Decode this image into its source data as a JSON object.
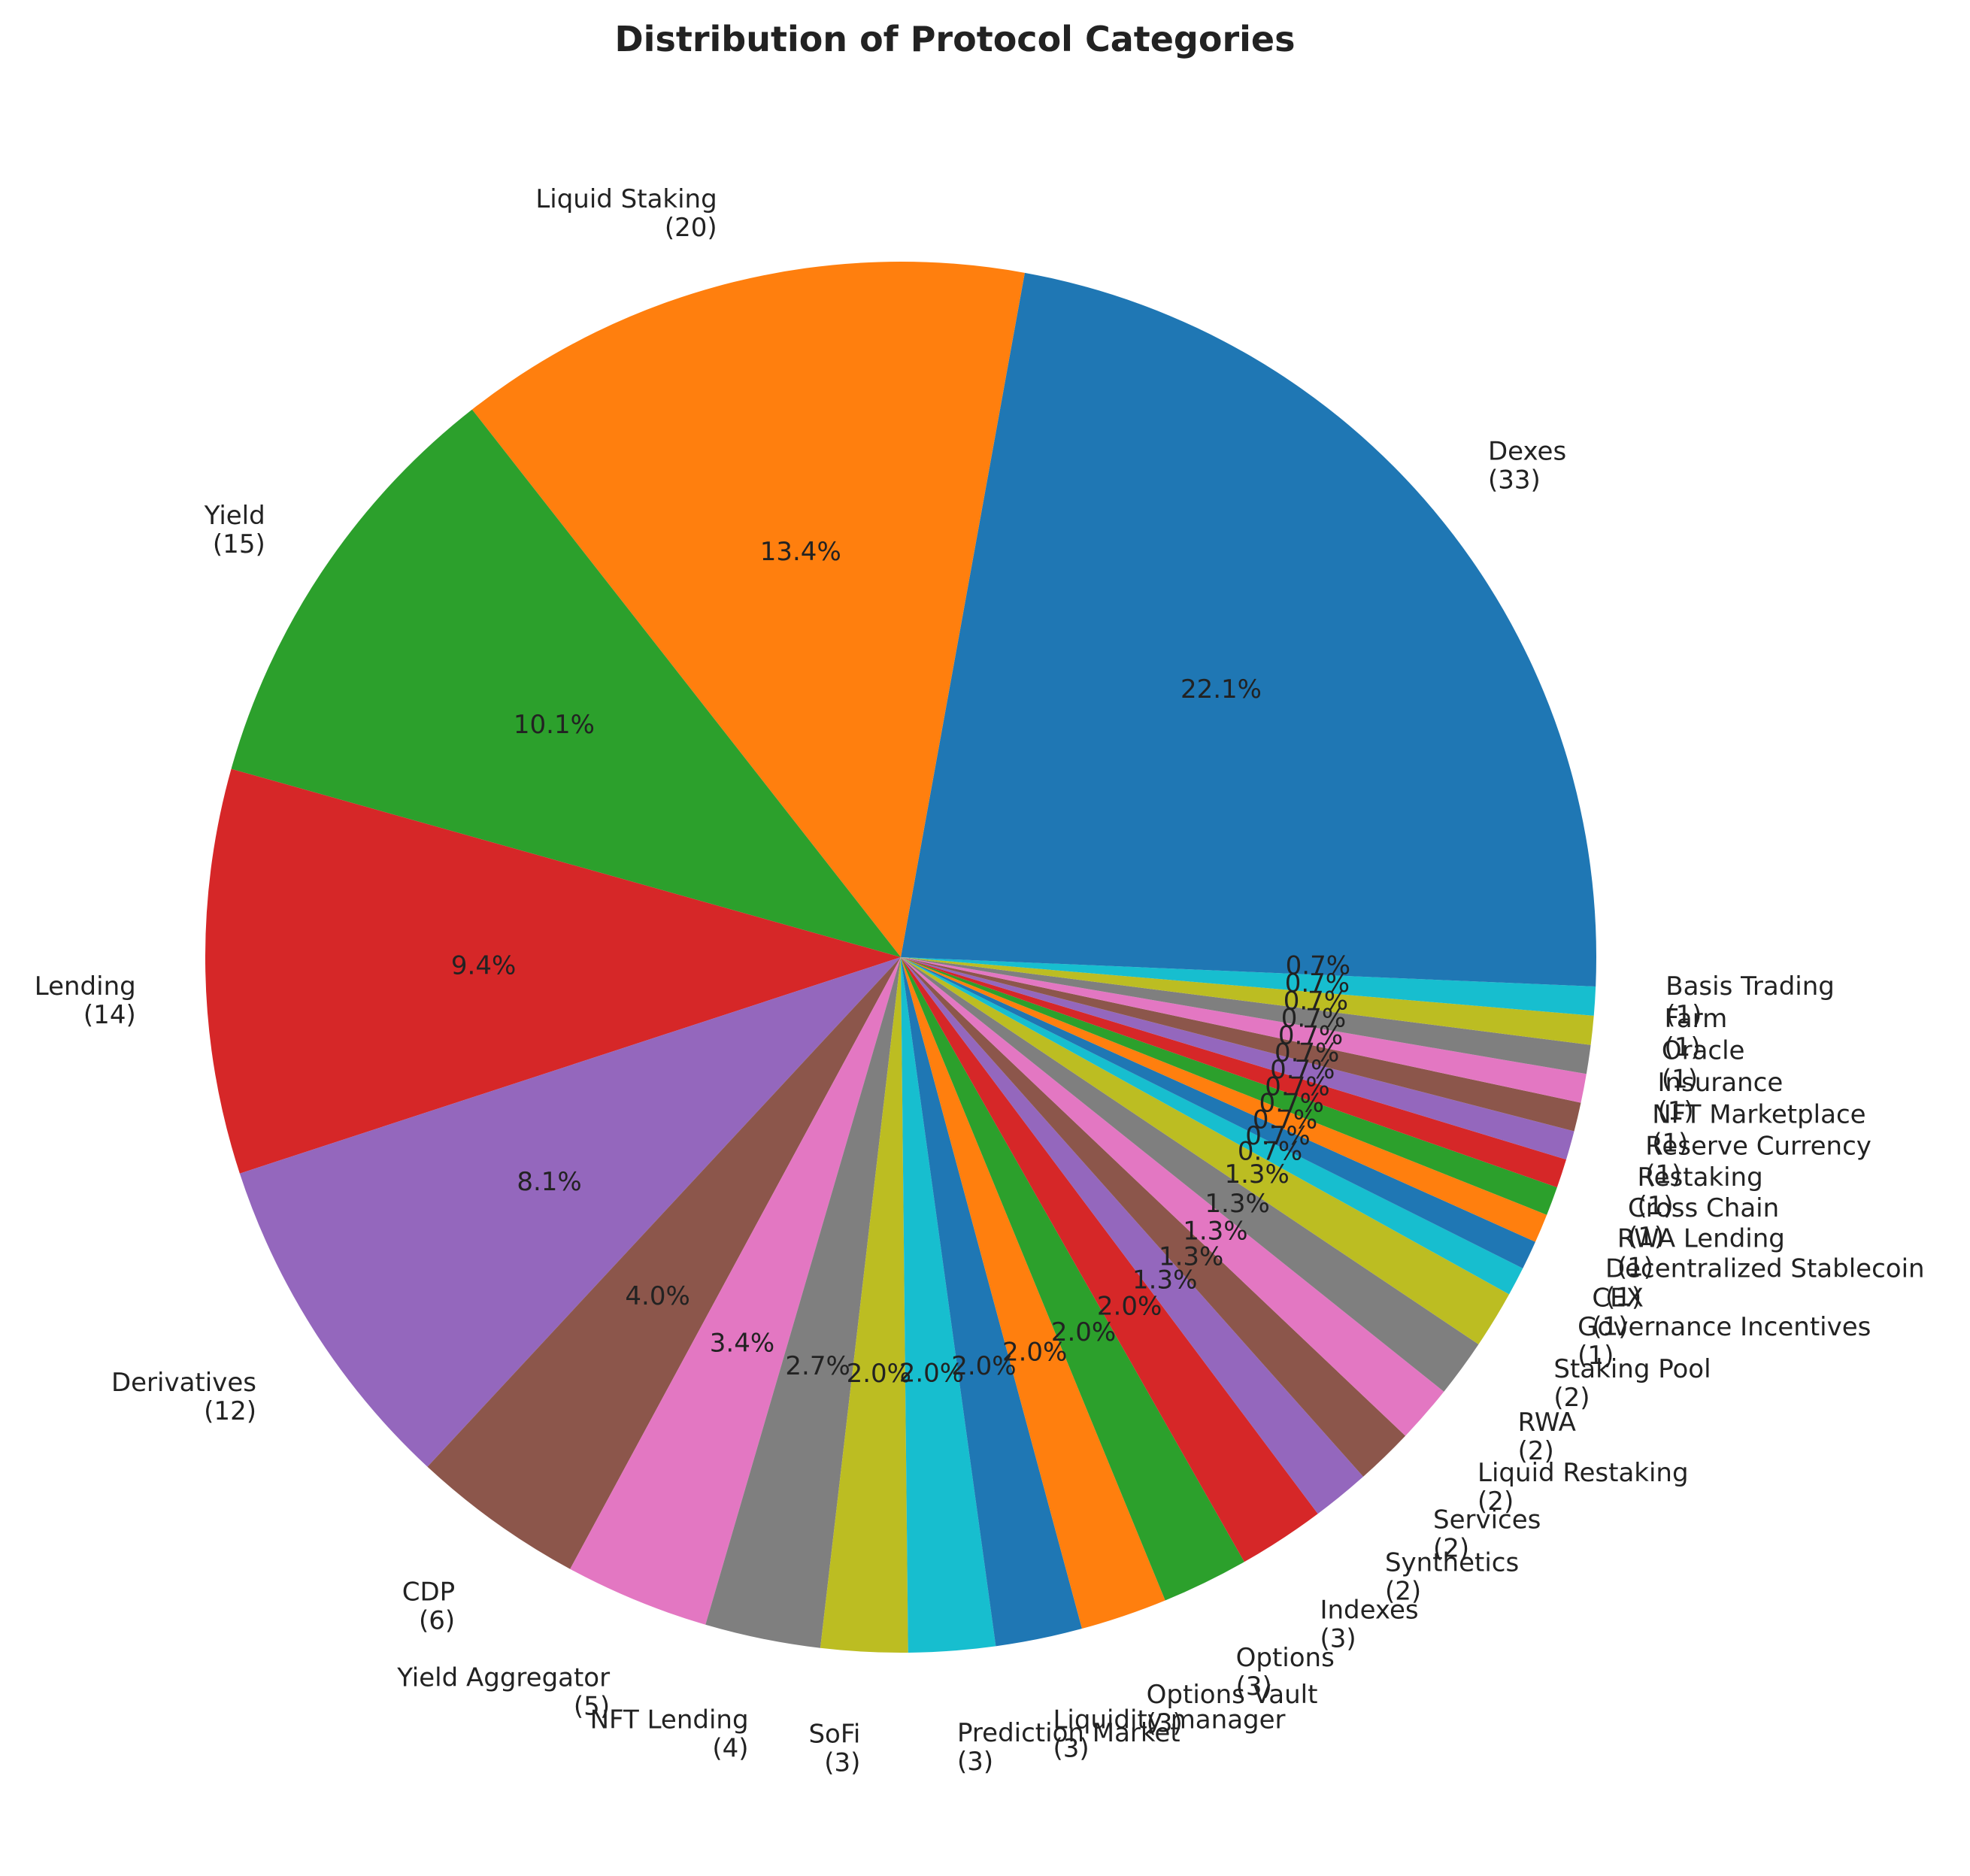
{
  "chart_data": {
    "type": "pie",
    "title": "Distribution of Protocol Categories",
    "start_angle_deg": 0,
    "direction": "counterclockwise",
    "slices": [
      {
        "label": "Dexes",
        "count": 33,
        "pct": "22.1%",
        "color": "#1f77b4"
      },
      {
        "label": "Liquid Staking",
        "count": 20,
        "pct": "13.4%",
        "color": "#ff7f0e"
      },
      {
        "label": "Yield",
        "count": 15,
        "pct": "10.1%",
        "color": "#2ca02c"
      },
      {
        "label": "Lending",
        "count": 14,
        "pct": "9.4%",
        "color": "#d62728"
      },
      {
        "label": "Derivatives",
        "count": 12,
        "pct": "8.1%",
        "color": "#9467bd"
      },
      {
        "label": "CDP",
        "count": 6,
        "pct": "4.0%",
        "color": "#8c564b"
      },
      {
        "label": "Yield Aggregator",
        "count": 5,
        "pct": "3.4%",
        "color": "#e377c2"
      },
      {
        "label": "NFT Lending",
        "count": 4,
        "pct": "2.7%",
        "color": "#7f7f7f"
      },
      {
        "label": "SoFi",
        "count": 3,
        "pct": "2.0%",
        "color": "#bcbd22"
      },
      {
        "label": "Prediction Market",
        "count": 3,
        "pct": "2.0%",
        "color": "#17becf"
      },
      {
        "label": "Liquidity manager",
        "count": 3,
        "pct": "2.0%",
        "color": "#1f77b4"
      },
      {
        "label": "Options Vault",
        "count": 3,
        "pct": "2.0%",
        "color": "#ff7f0e"
      },
      {
        "label": "Options",
        "count": 3,
        "pct": "2.0%",
        "color": "#2ca02c"
      },
      {
        "label": "Indexes",
        "count": 3,
        "pct": "2.0%",
        "color": "#d62728"
      },
      {
        "label": "Synthetics",
        "count": 2,
        "pct": "1.3%",
        "color": "#9467bd"
      },
      {
        "label": "Services",
        "count": 2,
        "pct": "1.3%",
        "color": "#8c564b"
      },
      {
        "label": "Liquid Restaking",
        "count": 2,
        "pct": "1.3%",
        "color": "#e377c2"
      },
      {
        "label": "RWA",
        "count": 2,
        "pct": "1.3%",
        "color": "#7f7f7f"
      },
      {
        "label": "Staking Pool",
        "count": 2,
        "pct": "1.3%",
        "color": "#bcbd22"
      },
      {
        "label": "Governance Incentives",
        "count": 1,
        "pct": "0.7%",
        "color": "#17becf"
      },
      {
        "label": "CEX",
        "count": 1,
        "pct": "0.7%",
        "color": "#1f77b4"
      },
      {
        "label": "Decentralized Stablecoin",
        "count": 1,
        "pct": "0.7%",
        "color": "#ff7f0e"
      },
      {
        "label": "RWA Lending",
        "count": 1,
        "pct": "0.7%",
        "color": "#2ca02c"
      },
      {
        "label": "Cross Chain",
        "count": 1,
        "pct": "0.7%",
        "color": "#d62728"
      },
      {
        "label": "Restaking",
        "count": 1,
        "pct": "0.7%",
        "color": "#9467bd"
      },
      {
        "label": "Reserve Currency",
        "count": 1,
        "pct": "0.7%",
        "color": "#8c564b"
      },
      {
        "label": "NFT Marketplace",
        "count": 1,
        "pct": "0.7%",
        "color": "#e377c2"
      },
      {
        "label": "Insurance",
        "count": 1,
        "pct": "0.7%",
        "color": "#7f7f7f"
      },
      {
        "label": "Oracle",
        "count": 1,
        "pct": "0.7%",
        "color": "#bcbd22"
      },
      {
        "label": "Farm",
        "count": 1,
        "pct": "0.7%",
        "color": "#17becf"
      },
      {
        "label": "Basis Trading",
        "count": 1,
        "pct": "0.7%",
        "color": "#1f77b4"
      }
    ]
  }
}
